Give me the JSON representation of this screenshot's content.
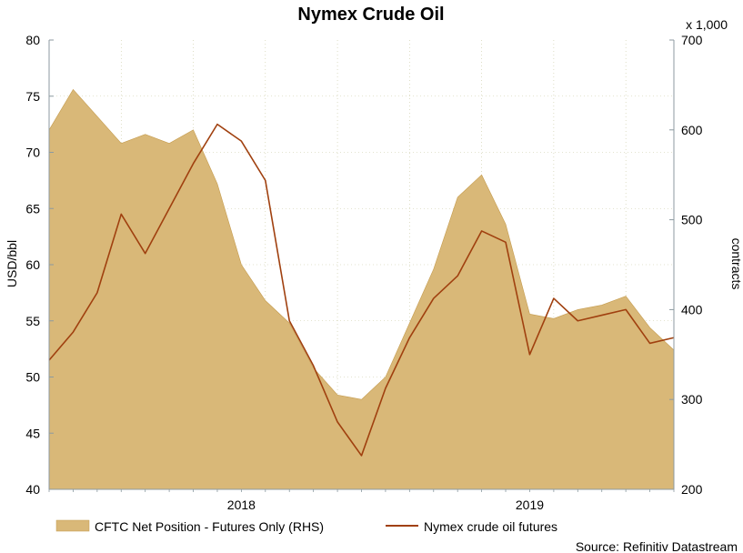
{
  "chart_data": {
    "type": "area",
    "title": "Nymex Crude Oil",
    "source": "Source: Refinitiv Datastream",
    "x_ticks": [
      "2018",
      "2019"
    ],
    "y_left": {
      "label": "USD/bbl",
      "lim": [
        40,
        80
      ],
      "ticks": [
        40,
        45,
        50,
        55,
        60,
        65,
        70,
        75,
        80
      ]
    },
    "y_right": {
      "label": "contracts",
      "multiplier": "x 1,000",
      "lim": [
        200,
        700
      ],
      "ticks": [
        200,
        300,
        400,
        500,
        600,
        700
      ]
    },
    "grid": true,
    "legend_position": "bottom",
    "colors": {
      "area": "#d9b878",
      "area_edge": "#c49a4c",
      "line": "#a0400f",
      "axis": "#8c9aa0",
      "grid": "#c8c8a0"
    },
    "x": [
      "2017-10",
      "2017-11",
      "2017-12",
      "2018-01",
      "2018-02",
      "2018-03",
      "2018-04",
      "2018-05",
      "2018-06",
      "2018-07",
      "2018-08",
      "2018-09",
      "2018-10",
      "2018-11",
      "2018-12",
      "2019-01",
      "2019-02",
      "2019-03",
      "2019-04",
      "2019-05",
      "2019-06",
      "2019-07",
      "2019-08",
      "2019-09",
      "2019-10",
      "2019-11",
      "2019-12"
    ],
    "series": [
      {
        "name": "CFTC Net Position - Futures Only (RHS)",
        "axis": "right",
        "style": "area",
        "values": [
          600,
          645,
          615,
          585,
          595,
          585,
          600,
          540,
          450,
          410,
          385,
          335,
          305,
          300,
          325,
          385,
          445,
          525,
          550,
          495,
          395,
          390,
          400,
          405,
          415,
          380,
          355
        ]
      },
      {
        "name": "Nymex crude oil futures",
        "axis": "left",
        "style": "line",
        "values": [
          51.5,
          54.0,
          57.5,
          64.5,
          61.0,
          65.0,
          69.0,
          72.5,
          71.0,
          67.5,
          55.0,
          51.0,
          46.0,
          43.0,
          49.0,
          53.5,
          57.0,
          59.0,
          63.0,
          62.0,
          52.0,
          57.0,
          55.0,
          55.5,
          56.0,
          53.0,
          53.5
        ]
      }
    ]
  }
}
